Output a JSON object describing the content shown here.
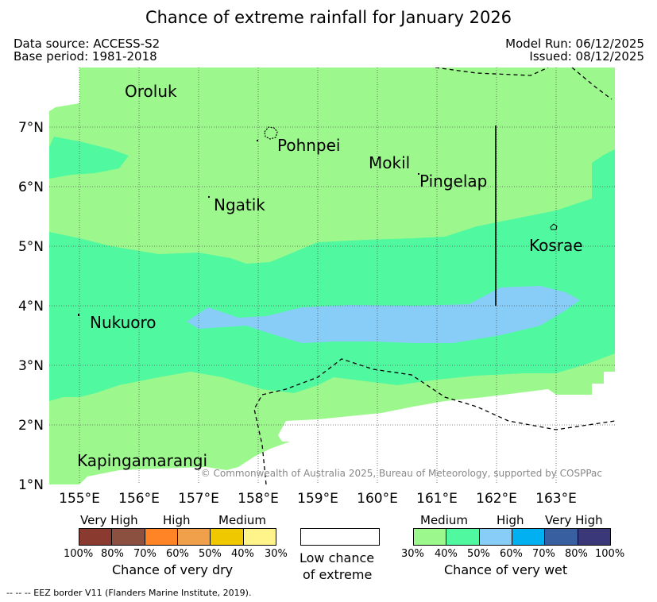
{
  "title": "Chance of extreme rainfall for January 2026",
  "meta": {
    "data_source": "Data source: ACCESS-S2",
    "base_period": "Base period: 1981-2018",
    "model_run": "Model Run: 06/12/2025",
    "issued": "Issued: 08/12/2025"
  },
  "map": {
    "lon_labels": [
      "155°E",
      "156°E",
      "157°E",
      "158°E",
      "159°E",
      "160°E",
      "161°E",
      "162°E",
      "163°E"
    ],
    "lat_labels": [
      "7°N",
      "6°N",
      "5°N",
      "4°N",
      "3°N",
      "2°N",
      "1°N"
    ],
    "places": {
      "oroluk": "Oroluk",
      "pohnpei": "Pohnpei",
      "mokil": "Mokil",
      "pingelap": "Pingelap",
      "ngatik": "Ngatik",
      "kosrae": "Kosrae",
      "nukuoro": "Nukuoro",
      "kapingamarangi": "Kapingamarangi"
    },
    "copyright": "© Commonwealth of Australia 2025, Bureau of Meteorology, supported by COSPPac"
  },
  "legend_dry": {
    "categories": [
      "Very High",
      "High",
      "Medium"
    ],
    "colors": [
      "#8b3a2f",
      "#8b5040",
      "#fe8426",
      "#f0a04a",
      "#f0c800",
      "#fef48a"
    ],
    "ticks": [
      "100%",
      "80%",
      "70%",
      "60%",
      "50%",
      "40%",
      "30%"
    ],
    "caption": "Chance of very dry"
  },
  "legend_low": {
    "line1": "Low chance",
    "line2": "of extreme"
  },
  "legend_wet": {
    "categories": [
      "Medium",
      "High",
      "Very High"
    ],
    "colors": [
      "#9cf88c",
      "#50f8a0",
      "#88ccf8",
      "#00b0f0",
      "#3860a0",
      "#3a3878"
    ],
    "ticks": [
      "30%",
      "40%",
      "50%",
      "60%",
      "70%",
      "80%",
      "100%"
    ],
    "caption": "Chance of very wet"
  },
  "footer": "--  --  -- EEZ border V11 (Flanders Marine Institute, 2019)."
}
